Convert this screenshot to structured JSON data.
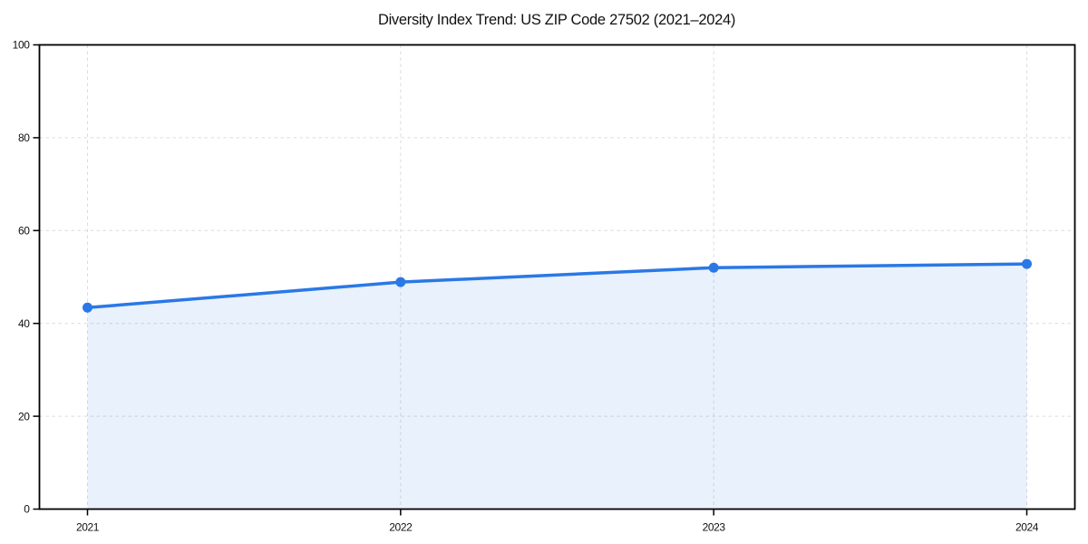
{
  "chart_data": {
    "type": "line",
    "title": "Diversity Index Trend: US ZIP Code 27502 (2021–2024)",
    "x": [
      "2021",
      "2022",
      "2023",
      "2024"
    ],
    "series": [
      {
        "name": "Diversity Index",
        "values": [
          43.4,
          48.9,
          52.0,
          52.8
        ]
      }
    ],
    "xlabel": "",
    "ylabel": "",
    "ylim": [
      0,
      100
    ],
    "yticks": [
      0,
      20,
      40,
      60,
      80,
      100
    ],
    "grid": "dashed both x and y, light gray",
    "legend_position": "none",
    "area_fill": true,
    "marker": "circle",
    "colors": {
      "line": "#2a78e6",
      "marker": "#2a78e6",
      "fill": "#2a78e6",
      "fill_opacity": 0.1,
      "gridline": "#dcdcdc",
      "spine": "#000000",
      "text": "#111111",
      "background": "#ffffff"
    }
  }
}
